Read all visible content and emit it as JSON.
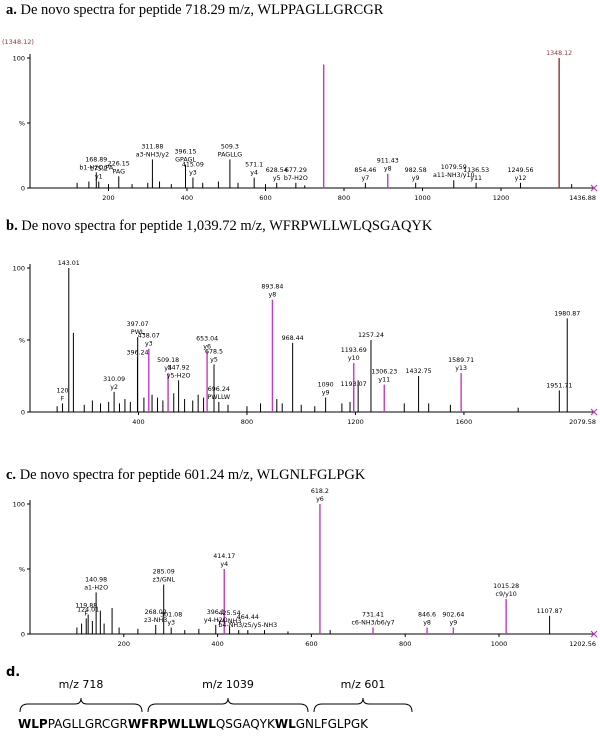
{
  "panels": [
    {
      "label": "a.",
      "title": "De novo spectra for peptide 718.29 m/z, WLPPAGLLGRCGR",
      "top_left_label": "(1348.12)",
      "chart_data": {
        "type": "bar",
        "title": "De novo spectra for peptide 718.29 m/z, WLPPAGLLGRCGR",
        "xlim": [
          0,
          1436.88
        ],
        "ylim": [
          0,
          100
        ],
        "xticks": [
          "200",
          "400",
          "600",
          "800",
          "1000",
          "1200"
        ],
        "xtick_values": [
          200,
          400,
          600,
          800,
          1000,
          1200
        ],
        "xmax_label": "1436.88",
        "yticks": [
          "0",
          "%",
          "100"
        ],
        "peaks": [
          {
            "x": 120,
            "y": 4
          },
          {
            "x": 150,
            "y": 5
          },
          {
            "x": 168.89,
            "y": 12
          },
          {
            "x": 175.2,
            "y": 5
          },
          {
            "x": 200,
            "y": 3
          },
          {
            "x": 226.15,
            "y": 9
          },
          {
            "x": 260,
            "y": 3
          },
          {
            "x": 300,
            "y": 4
          },
          {
            "x": 311.88,
            "y": 22
          },
          {
            "x": 330,
            "y": 5
          },
          {
            "x": 360,
            "y": 3
          },
          {
            "x": 396.15,
            "y": 18
          },
          {
            "x": 415.09,
            "y": 8
          },
          {
            "x": 440,
            "y": 4
          },
          {
            "x": 480,
            "y": 5
          },
          {
            "x": 509.3,
            "y": 22
          },
          {
            "x": 530,
            "y": 4
          },
          {
            "x": 571.1,
            "y": 8
          },
          {
            "x": 600,
            "y": 3
          },
          {
            "x": 628.54,
            "y": 4
          },
          {
            "x": 677.29,
            "y": 4
          },
          {
            "x": 700,
            "y": 2
          },
          {
            "x": 748.2,
            "y": 95
          },
          {
            "x": 854.46,
            "y": 4
          },
          {
            "x": 911.43,
            "y": 11
          },
          {
            "x": 982.58,
            "y": 4
          },
          {
            "x": 1079.59,
            "y": 6
          },
          {
            "x": 1136.53,
            "y": 4
          },
          {
            "x": 1249.56,
            "y": 4
          },
          {
            "x": 1348.12,
            "y": 100
          },
          {
            "x": 1380,
            "y": 3
          }
        ],
        "magenta_peaks": [
          748.2,
          911.43
        ],
        "red_peaks": [
          1348.12
        ],
        "annotations": [
          {
            "x": 168.89,
            "text": "168.89"
          },
          {
            "x": 168.89,
            "text": "b1-H2O/PA"
          },
          {
            "x": 175.2,
            "text": "175.2"
          },
          {
            "x": 175.2,
            "text": "y1"
          },
          {
            "x": 226.15,
            "text": "226.15"
          },
          {
            "x": 226.15,
            "text": "PAG"
          },
          {
            "x": 311.88,
            "text": "311.88"
          },
          {
            "x": 311.88,
            "text": "a3-NH3/y2"
          },
          {
            "x": 396.15,
            "text": "396.15"
          },
          {
            "x": 396.15,
            "text": "GPAGL"
          },
          {
            "x": 415.09,
            "text": "415.09"
          },
          {
            "x": 415.09,
            "text": "y3"
          },
          {
            "x": 509.3,
            "text": "509.3"
          },
          {
            "x": 509.3,
            "text": "PAGLLG"
          },
          {
            "x": 571.1,
            "text": "571.1"
          },
          {
            "x": 571.1,
            "text": "y4"
          },
          {
            "x": 628.54,
            "text": "628.54"
          },
          {
            "x": 628.54,
            "text": "y5"
          },
          {
            "x": 677.29,
            "text": "677.29"
          },
          {
            "x": 677.29,
            "text": "b7-H2O"
          },
          {
            "x": 854.46,
            "text": "854.46"
          },
          {
            "x": 854.46,
            "text": "y7"
          },
          {
            "x": 911.43,
            "text": "911.43"
          },
          {
            "x": 911.43,
            "text": "y8"
          },
          {
            "x": 982.58,
            "text": "982.58"
          },
          {
            "x": 982.58,
            "text": "y9"
          },
          {
            "x": 1079.59,
            "text": "1079.59"
          },
          {
            "x": 1079.59,
            "text": "a11-NH3/y10"
          },
          {
            "x": 1136.53,
            "text": "1136.53"
          },
          {
            "x": 1136.53,
            "text": "y11"
          },
          {
            "x": 1249.56,
            "text": "1249.56"
          },
          {
            "x": 1249.56,
            "text": "y12"
          },
          {
            "x": 1348.12,
            "text": "1348.12"
          }
        ]
      }
    },
    {
      "label": "b.",
      "title": "De novo spectra for peptide 1,039.72 m/z, WFRPWLLWLQSGAQYK",
      "chart_data": {
        "type": "bar",
        "title": "De novo spectra for peptide 1,039.72 m/z, WFRPWLLWLQSGAQYK",
        "xlim": [
          0,
          2079.58
        ],
        "ylim": [
          0,
          100
        ],
        "xticks": [
          "400",
          "800",
          "1200",
          "1600"
        ],
        "xtick_values": [
          400,
          800,
          1200,
          1600
        ],
        "xmax_label": "2079.58",
        "yticks": [
          "0",
          "%",
          "100"
        ],
        "peaks": [
          {
            "x": 100,
            "y": 4
          },
          {
            "x": 120,
            "y": 6
          },
          {
            "x": 143.01,
            "y": 100
          },
          {
            "x": 160,
            "y": 55
          },
          {
            "x": 200,
            "y": 5
          },
          {
            "x": 230,
            "y": 8
          },
          {
            "x": 260,
            "y": 6
          },
          {
            "x": 290,
            "y": 7
          },
          {
            "x": 310.09,
            "y": 14
          },
          {
            "x": 330,
            "y": 6
          },
          {
            "x": 350,
            "y": 9
          },
          {
            "x": 370,
            "y": 7
          },
          {
            "x": 396.24,
            "y": 38
          },
          {
            "x": 397.07,
            "y": 52
          },
          {
            "x": 420,
            "y": 10
          },
          {
            "x": 438.07,
            "y": 44
          },
          {
            "x": 450,
            "y": 12
          },
          {
            "x": 470,
            "y": 10
          },
          {
            "x": 490,
            "y": 8
          },
          {
            "x": 509.18,
            "y": 27
          },
          {
            "x": 530,
            "y": 13
          },
          {
            "x": 547.92,
            "y": 22
          },
          {
            "x": 570,
            "y": 9
          },
          {
            "x": 600,
            "y": 8
          },
          {
            "x": 620,
            "y": 12
          },
          {
            "x": 640,
            "y": 10
          },
          {
            "x": 653.04,
            "y": 42
          },
          {
            "x": 678.5,
            "y": 33
          },
          {
            "x": 696.24,
            "y": 7
          },
          {
            "x": 730,
            "y": 5
          },
          {
            "x": 800,
            "y": 4
          },
          {
            "x": 850,
            "y": 6
          },
          {
            "x": 893.84,
            "y": 78
          },
          {
            "x": 910,
            "y": 9
          },
          {
            "x": 930,
            "y": 6
          },
          {
            "x": 968.44,
            "y": 48
          },
          {
            "x": 1000,
            "y": 5
          },
          {
            "x": 1050,
            "y": 4
          },
          {
            "x": 1090,
            "y": 10
          },
          {
            "x": 1150,
            "y": 6
          },
          {
            "x": 1180,
            "y": 7
          },
          {
            "x": 1193.07,
            "y": 16
          },
          {
            "x": 1193.69,
            "y": 34
          },
          {
            "x": 1210,
            "y": 22
          },
          {
            "x": 1257.24,
            "y": 50
          },
          {
            "x": 1306.23,
            "y": 19
          },
          {
            "x": 1380,
            "y": 6
          },
          {
            "x": 1432.75,
            "y": 25
          },
          {
            "x": 1470,
            "y": 6
          },
          {
            "x": 1550,
            "y": 5
          },
          {
            "x": 1589.71,
            "y": 27
          },
          {
            "x": 1800,
            "y": 3
          },
          {
            "x": 1951.71,
            "y": 15
          },
          {
            "x": 1980.87,
            "y": 65
          }
        ],
        "magenta_peaks": [
          438.07,
          509.18,
          653.04,
          893.84,
          1193.69,
          1306.23,
          1589.71
        ],
        "red_peaks": [],
        "annotations": [
          {
            "x": 120,
            "text": "120"
          },
          {
            "x": 120,
            "text": "F"
          },
          {
            "x": 143.01,
            "text": "143.01"
          },
          {
            "x": 310.09,
            "text": "310.09"
          },
          {
            "x": 310.09,
            "text": "y2"
          },
          {
            "x": 396.24,
            "text": "396.24"
          },
          {
            "x": 397.07,
            "text": "397.07"
          },
          {
            "x": 397.07,
            "text": "PWL"
          },
          {
            "x": 438.07,
            "text": "438.07"
          },
          {
            "x": 438.07,
            "text": "y3"
          },
          {
            "x": 509.18,
            "text": "509.18"
          },
          {
            "x": 509.18,
            "text": "y4"
          },
          {
            "x": 547.92,
            "text": "547.92"
          },
          {
            "x": 547.92,
            "text": "y5-H2O"
          },
          {
            "x": 653.04,
            "text": "653.04"
          },
          {
            "x": 653.04,
            "text": "y6"
          },
          {
            "x": 678.5,
            "text": "678.5"
          },
          {
            "x": 678.5,
            "text": "y5"
          },
          {
            "x": 696.24,
            "text": "696.24"
          },
          {
            "x": 696.24,
            "text": "PWLLW"
          },
          {
            "x": 893.84,
            "text": "893.84"
          },
          {
            "x": 893.84,
            "text": "y8"
          },
          {
            "x": 968.44,
            "text": "968.44"
          },
          {
            "x": 1090,
            "text": "1090"
          },
          {
            "x": 1090,
            "text": "y9"
          },
          {
            "x": 1193.07,
            "text": "1193.07"
          },
          {
            "x": 1193.69,
            "text": "1193.69"
          },
          {
            "x": 1193.69,
            "text": "y10"
          },
          {
            "x": 1257.24,
            "text": "1257.24"
          },
          {
            "x": 1306.23,
            "text": "1306.23"
          },
          {
            "x": 1306.23,
            "text": "y11"
          },
          {
            "x": 1432.75,
            "text": "1432.75"
          },
          {
            "x": 1589.71,
            "text": "1589.71"
          },
          {
            "x": 1589.71,
            "text": "y13"
          },
          {
            "x": 1951.71,
            "text": "1951.71"
          },
          {
            "x": 1980.87,
            "text": "1980.87"
          }
        ]
      }
    },
    {
      "label": "c.",
      "title": "De novo spectra for peptide 601.24 m/z, WLGNLFGLPGK",
      "chart_data": {
        "type": "bar",
        "title": "De novo spectra for peptide 601.24 m/z, WLGNLFGLPGK",
        "xlim": [
          0,
          1202.56
        ],
        "ylim": [
          0,
          100
        ],
        "xticks": [
          "200",
          "400",
          "600",
          "800",
          "1000"
        ],
        "xtick_values": [
          200,
          400,
          600,
          800,
          1000
        ],
        "xmax_label": "1202.56",
        "yticks": [
          "0",
          "%",
          "100"
        ],
        "peaks": [
          {
            "x": 100,
            "y": 5
          },
          {
            "x": 110,
            "y": 8
          },
          {
            "x": 119.88,
            "y": 12
          },
          {
            "x": 124.01,
            "y": 15
          },
          {
            "x": 133,
            "y": 10
          },
          {
            "x": 140.98,
            "y": 32
          },
          {
            "x": 150,
            "y": 18
          },
          {
            "x": 158,
            "y": 8
          },
          {
            "x": 175,
            "y": 20
          },
          {
            "x": 190,
            "y": 5
          },
          {
            "x": 230,
            "y": 4
          },
          {
            "x": 268.02,
            "y": 7
          },
          {
            "x": 285.09,
            "y": 38
          },
          {
            "x": 301.08,
            "y": 5
          },
          {
            "x": 330,
            "y": 3
          },
          {
            "x": 360,
            "y": 4
          },
          {
            "x": 396.1,
            "y": 7
          },
          {
            "x": 414.17,
            "y": 50
          },
          {
            "x": 425.54,
            "y": 6
          },
          {
            "x": 445,
            "y": 3
          },
          {
            "x": 464.44,
            "y": 3
          },
          {
            "x": 500,
            "y": 3
          },
          {
            "x": 550,
            "y": 2
          },
          {
            "x": 618.2,
            "y": 100
          },
          {
            "x": 640,
            "y": 3
          },
          {
            "x": 731.41,
            "y": 5
          },
          {
            "x": 846.6,
            "y": 5
          },
          {
            "x": 902.64,
            "y": 5
          },
          {
            "x": 1015.28,
            "y": 27
          },
          {
            "x": 1107.87,
            "y": 14
          }
        ],
        "magenta_peaks": [
          414.17,
          618.2,
          731.41,
          846.6,
          902.64,
          1015.28
        ],
        "red_peaks": [],
        "annotations": [
          {
            "x": 119.88,
            "text": "119.88"
          },
          {
            "x": 119.88,
            "text": "F"
          },
          {
            "x": 124.01,
            "text": "124.01"
          },
          {
            "x": 140.98,
            "text": "140.98"
          },
          {
            "x": 140.98,
            "text": "a1-H2O"
          },
          {
            "x": 268.02,
            "text": "268.02"
          },
          {
            "x": 268.02,
            "text": "z3-NH3"
          },
          {
            "x": 285.09,
            "text": "285.09"
          },
          {
            "x": 285.09,
            "text": "z3/GNL"
          },
          {
            "x": 301.08,
            "text": "301.08"
          },
          {
            "x": 301.08,
            "text": "y3"
          },
          {
            "x": 396.1,
            "text": "396.1"
          },
          {
            "x": 396.1,
            "text": "y4-H2O"
          },
          {
            "x": 414.17,
            "text": "414.17"
          },
          {
            "x": 414.17,
            "text": "y4"
          },
          {
            "x": 425.54,
            "text": "425.54"
          },
          {
            "x": 425.54,
            "text": "y4-NH3"
          },
          {
            "x": 464.44,
            "text": "464.44"
          },
          {
            "x": 464.44,
            "text": "b4-NH3/z5/y5-NH3"
          },
          {
            "x": 618.2,
            "text": "618.2"
          },
          {
            "x": 618.2,
            "text": "y6"
          },
          {
            "x": 731.41,
            "text": "731.41"
          },
          {
            "x": 731.41,
            "text": "c6-NH3/b6/y7"
          },
          {
            "x": 846.6,
            "text": "846.6"
          },
          {
            "x": 846.6,
            "text": "y8"
          },
          {
            "x": 902.64,
            "text": "902.64"
          },
          {
            "x": 902.64,
            "text": "y9"
          },
          {
            "x": 1015.28,
            "text": "1015.28"
          },
          {
            "x": 1015.28,
            "text": "c9/y10"
          },
          {
            "x": 1107.87,
            "text": "1107.87"
          }
        ]
      }
    }
  ],
  "panel_d": {
    "label": "d.",
    "groups": [
      {
        "label": "m/z 718"
      },
      {
        "label": "m/z 1039"
      },
      {
        "label": "m/z 601"
      }
    ],
    "sequence": [
      {
        "text": "WLP",
        "bold": true
      },
      {
        "text": "PAGLLGRCGR",
        "bold": false
      },
      {
        "text": "WFRPWLLWL",
        "bold": true
      },
      {
        "text": "QSGAQYK",
        "bold": false
      },
      {
        "text": "WL",
        "bold": true
      },
      {
        "text": "GNLFGLPGK",
        "bold": false
      }
    ]
  },
  "colors": {
    "peak": "#000000",
    "magenta": "#cc33cc",
    "red": "#993333",
    "axis": "#000000",
    "marker": "#cc33cc"
  }
}
